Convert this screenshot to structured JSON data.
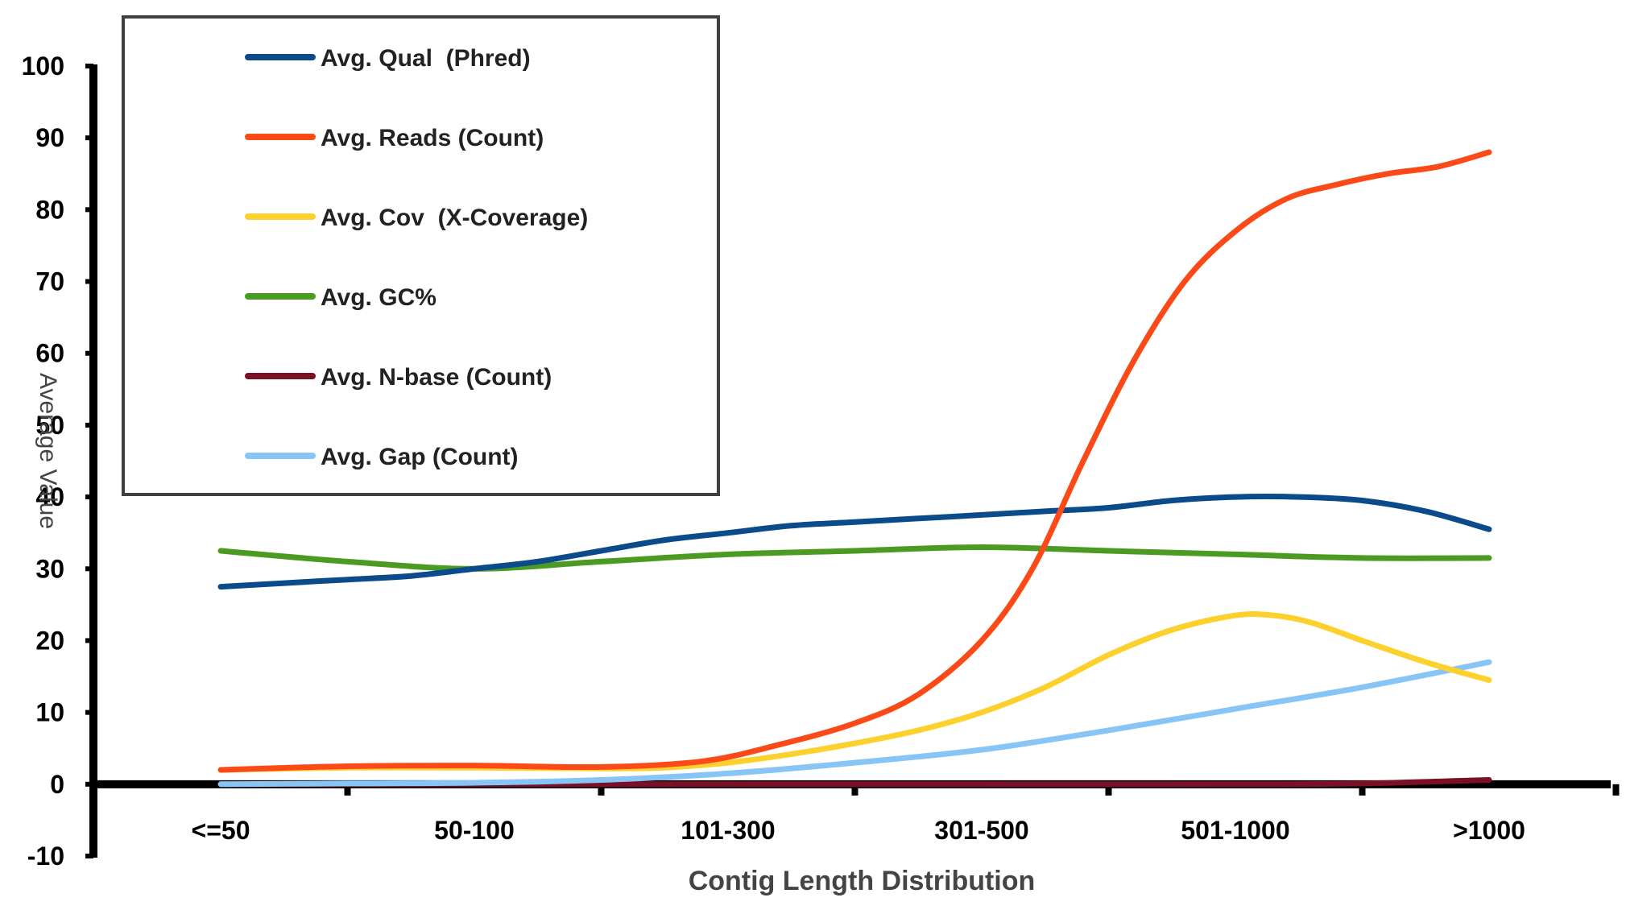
{
  "chart_data": {
    "type": "line",
    "title": "",
    "xlabel": "Contig Length Distribution",
    "ylabel": "Average Value",
    "categories": [
      "<=50",
      "50-100",
      "101-300",
      "301-500",
      "501-1000",
      ">1000"
    ],
    "ylim": [
      -10,
      100
    ],
    "yticks": [
      -10,
      0,
      10,
      20,
      30,
      40,
      50,
      60,
      70,
      80,
      90,
      100
    ],
    "legend_position": "top-left",
    "series": [
      {
        "name": "Avg. Qual  (Phred)",
        "color": "#0b4a8b",
        "x": [
          0,
          0.25,
          0.5,
          0.75,
          1,
          1.25,
          1.5,
          1.75,
          2,
          2.25,
          2.5,
          2.75,
          3,
          3.25,
          3.5,
          3.75,
          4,
          4.25,
          4.5,
          4.75,
          5
        ],
        "y": [
          27.5,
          28,
          28.5,
          29,
          30,
          31,
          32.5,
          34,
          35,
          36,
          36.5,
          37,
          37.5,
          38,
          38.5,
          39.5,
          40,
          40,
          39.5,
          38,
          35.5
        ]
      },
      {
        "name": "Avg. Reads (Count)",
        "color": "#fb4a17",
        "x": [
          0,
          0.5,
          1,
          1.5,
          1.9,
          2.2,
          2.5,
          2.75,
          3,
          3.2,
          3.4,
          3.6,
          3.8,
          4,
          4.2,
          4.4,
          4.6,
          4.8,
          5
        ],
        "y": [
          2,
          2.5,
          2.6,
          2.4,
          3.2,
          5.5,
          8.5,
          12.5,
          20,
          30,
          45,
          59,
          70,
          77,
          81.5,
          83.5,
          85,
          86,
          88
        ]
      },
      {
        "name": "Avg. Cov  (X-Coverage)",
        "color": "#fdd12d",
        "x": [
          0,
          0.5,
          1,
          1.5,
          1.75,
          2,
          2.25,
          2.5,
          2.75,
          3,
          3.25,
          3.5,
          3.75,
          4,
          4.15,
          4.3,
          4.5,
          4.75,
          5
        ],
        "y": [
          2,
          2.3,
          2.3,
          2.2,
          2.3,
          3,
          4.2,
          5.7,
          7.5,
          10,
          13.5,
          18,
          21.5,
          23.5,
          23.5,
          22.5,
          20,
          17,
          14.5
        ]
      },
      {
        "name": "Avg. GC%",
        "color": "#4b9b22",
        "x": [
          0,
          0.5,
          1,
          1.5,
          2,
          2.5,
          3,
          3.5,
          4,
          4.5,
          5
        ],
        "y": [
          32.5,
          31,
          30,
          31,
          32,
          32.5,
          33,
          32.5,
          32,
          31.5,
          31.5
        ]
      },
      {
        "name": "Avg. N-base (Count)",
        "color": "#7a0f26",
        "x": [
          0,
          1,
          2,
          3,
          4,
          4.5,
          5
        ],
        "y": [
          0,
          0,
          0,
          0,
          0,
          0.1,
          0.6
        ]
      },
      {
        "name": "Avg. Gap (Count)",
        "color": "#86c5f5",
        "x": [
          0,
          0.5,
          1,
          1.5,
          2,
          2.5,
          3,
          3.5,
          4,
          4.5,
          5
        ],
        "y": [
          0,
          0.1,
          0.2,
          0.6,
          1.5,
          3,
          4.8,
          7.5,
          10.5,
          13.5,
          17
        ]
      }
    ]
  }
}
